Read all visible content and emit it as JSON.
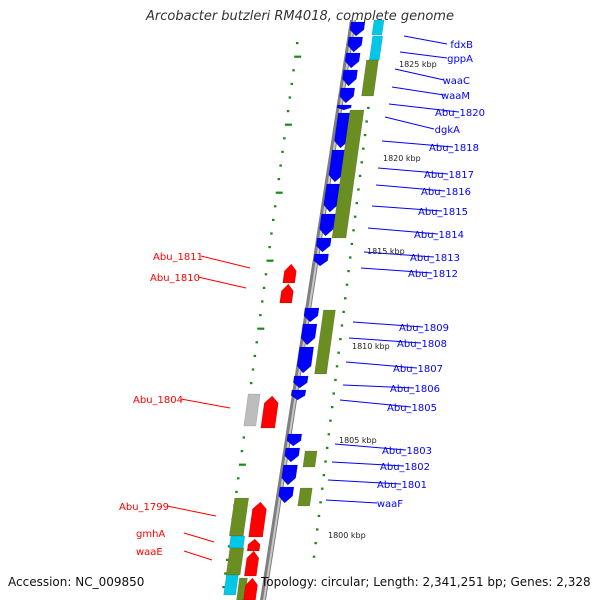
{
  "title": "Arcobacter butzleri RM4018, complete genome",
  "footer": {
    "accession": "Accession: NC_009850",
    "topology": "Topology: circular; Length: 2,341,251 bp; Genes: 2,328"
  },
  "colors": {
    "forward_gene": "#0000ff",
    "reverse_gene": "#ff0000",
    "rrna_operon": "#6b8e23",
    "special": "#00c8e6",
    "pseudogene": "#bdbdbd",
    "tick": "#1a8a1a",
    "backbone": "#999999"
  },
  "scale_labels": [
    "1825 kbp",
    "1820 kbp",
    "1815 kbp",
    "1810 kbp",
    "1805 kbp",
    "1800 kbp"
  ],
  "genes_right": [
    "fdxB",
    "gppA",
    "waaC",
    "waaM",
    "Abu_1820",
    "dgkA",
    "Abu_1818",
    "Abu_1817",
    "Abu_1816",
    "Abu_1815",
    "Abu_1814",
    "Abu_1813",
    "Abu_1812",
    "Abu_1809",
    "Abu_1808",
    "Abu_1807",
    "Abu_1806",
    "Abu_1805",
    "Abu_1803",
    "Abu_1802",
    "Abu_1801",
    "waaF"
  ],
  "genes_left": [
    "Abu_1811",
    "Abu_1810",
    "Abu_1804",
    "Abu_1799",
    "gmhA",
    "waaE"
  ]
}
